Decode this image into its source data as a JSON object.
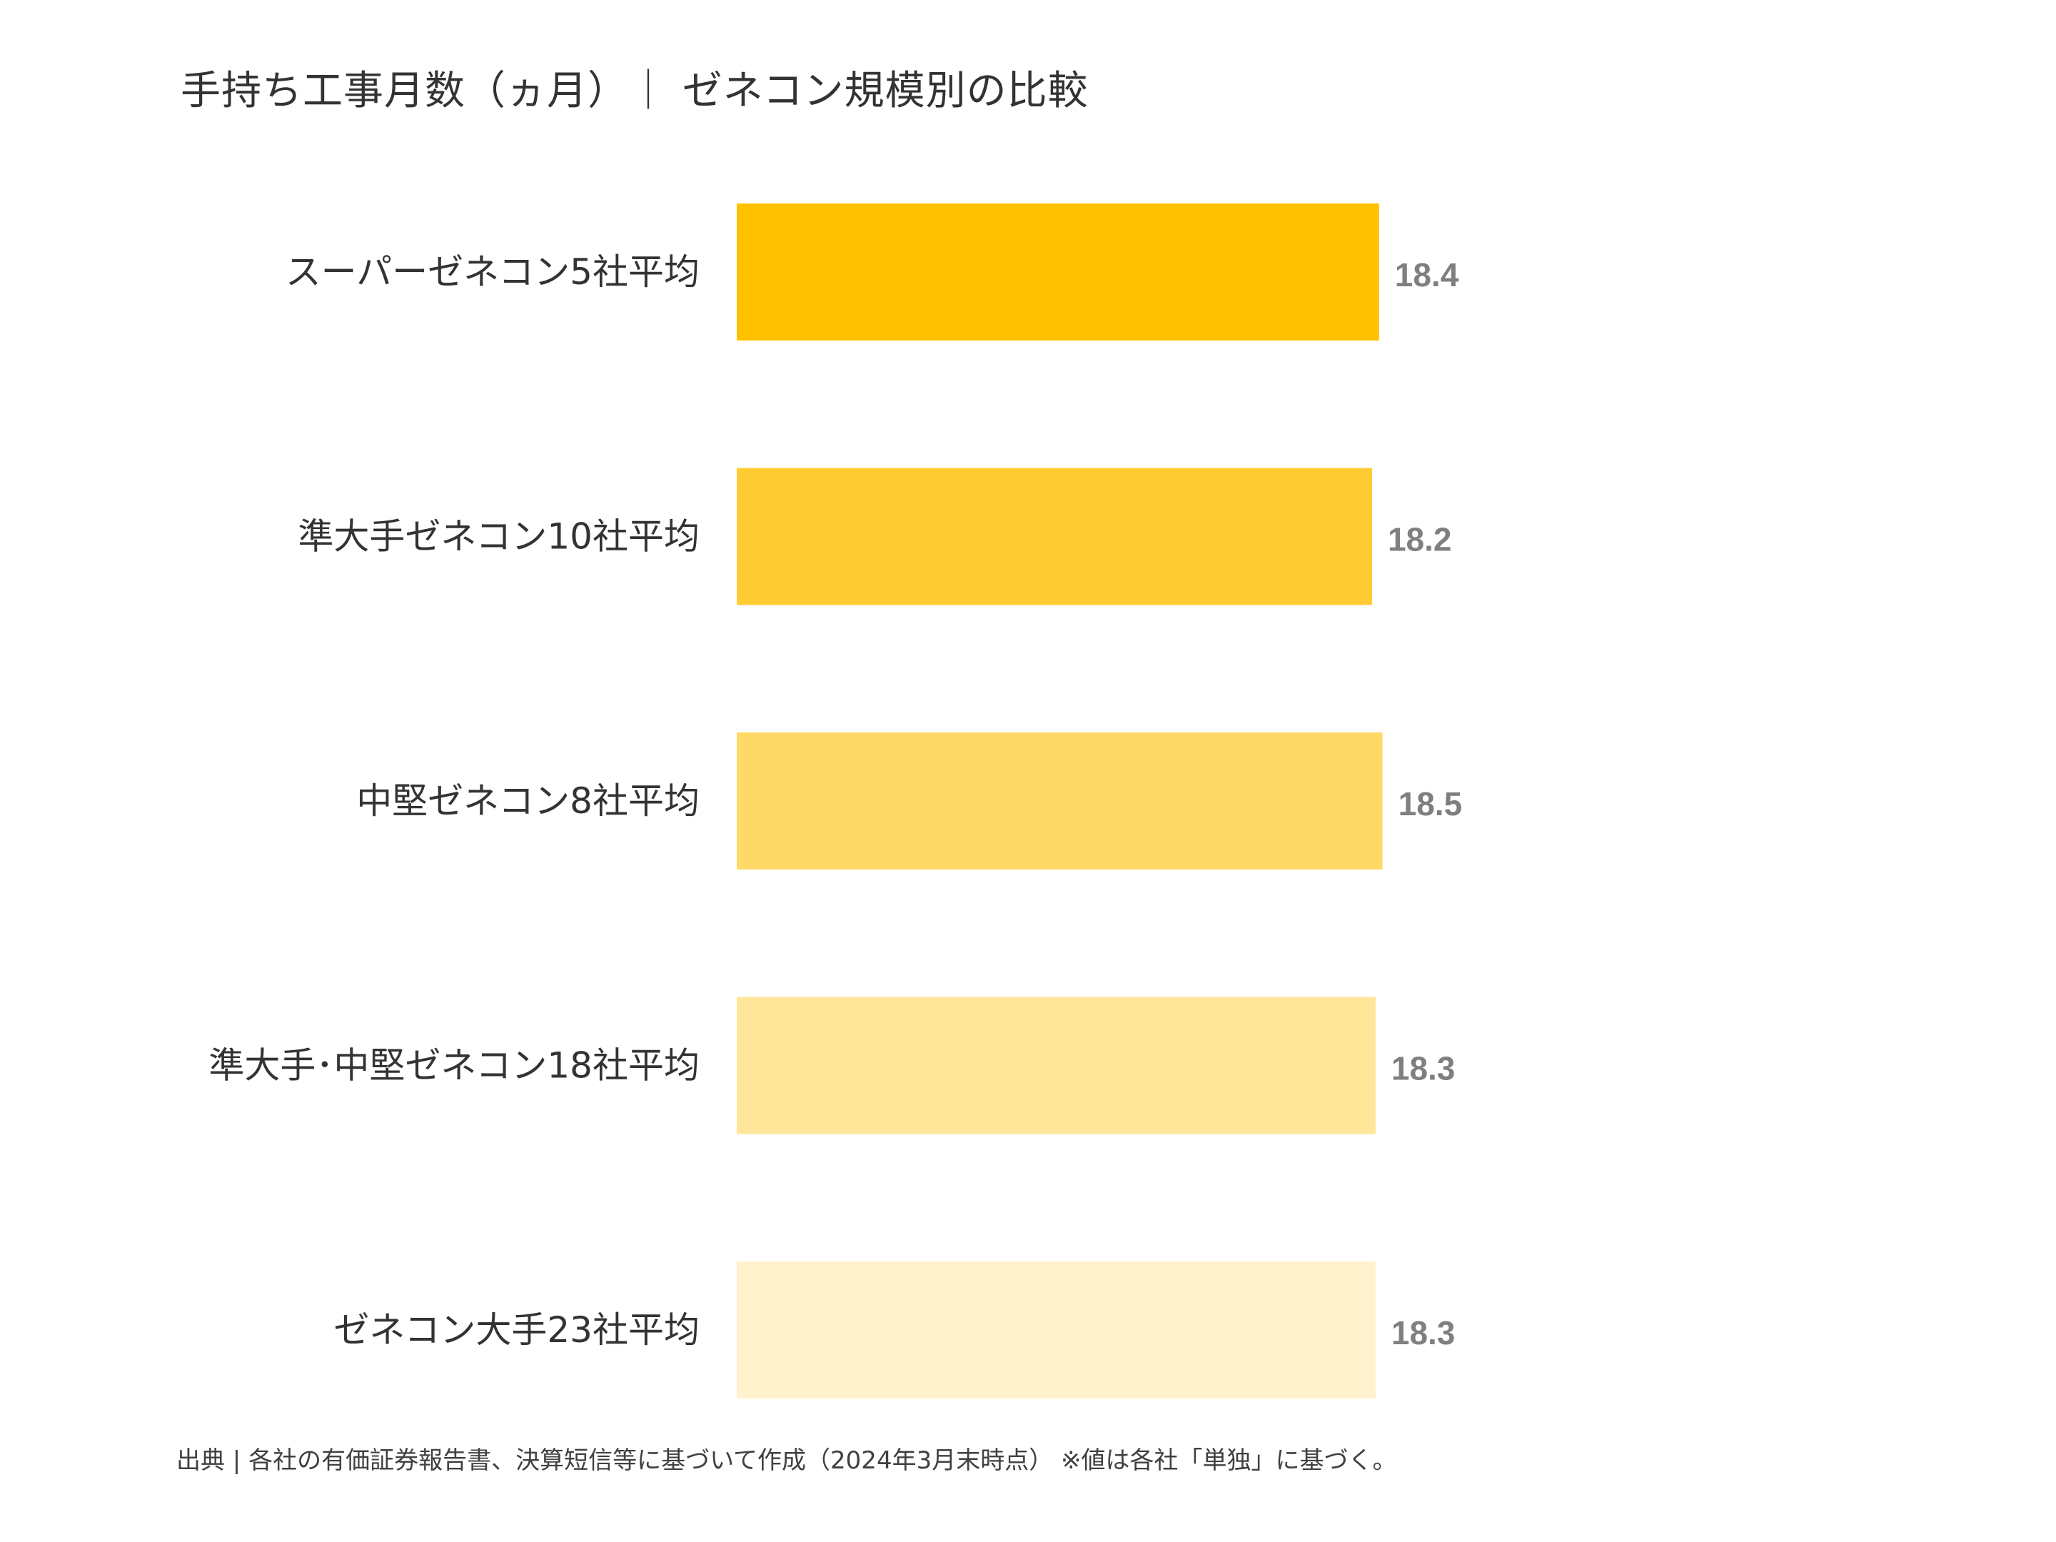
{
  "chart_data": {
    "type": "bar",
    "orientation": "horizontal",
    "title": "手持ち工事月数（ヵ月）｜ ゼネコン規模別の比較",
    "categories": [
      "スーパーゼネコン5社平均",
      "準大手ゼネコン10社平均",
      "中堅ゼネコン8社平均",
      "準大手･中堅ゼネコン18社平均",
      "ゼネコン大手23社平均"
    ],
    "values": [
      18.4,
      18.2,
      18.5,
      18.3,
      18.3
    ],
    "value_labels": [
      "18.4",
      "18.2",
      "18.5",
      "18.3",
      "18.3"
    ],
    "colors": [
      "#FFC000",
      "#FFCC33",
      "#FFD966",
      "#FFE699",
      "#FFF2CC"
    ],
    "xlim": [
      0,
      20
    ],
    "xlabel": "",
    "ylabel": "",
    "grid": false,
    "legend": "none"
  },
  "footer": {
    "source": "出典 | 各社の有価証券報告書、決算短信等に基づいて作成（2024年3月末時点）  ※値は各社「単独」に基づく。"
  }
}
